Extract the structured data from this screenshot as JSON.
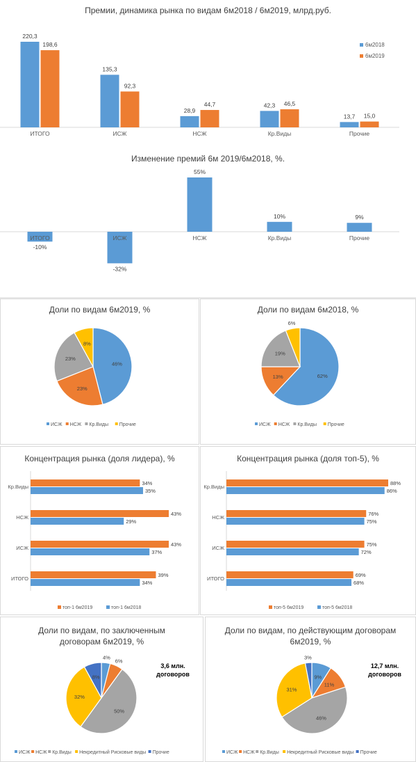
{
  "colors": {
    "blue": "#5b9bd5",
    "orange": "#ed7d31",
    "gray": "#a5a5a5",
    "yellow": "#ffc000",
    "navy": "#4472c4"
  },
  "chart_data": [
    {
      "id": "premiums",
      "type": "bar",
      "title": "Премии, динамика рынка по видам 6м2018 / 6м2019, млрд.руб.",
      "categories": [
        "ИТОГО",
        "ИСЖ",
        "НСЖ",
        "Кр.Виды",
        "Прочие"
      ],
      "series": [
        {
          "name": "6м2018",
          "color": "#5b9bd5",
          "values": [
            220.3,
            135.3,
            28.9,
            42.3,
            13.7
          ],
          "labels": [
            "220,3",
            "135,3",
            "28,9",
            "42,3",
            "13,7"
          ]
        },
        {
          "name": "6м2019",
          "color": "#ed7d31",
          "values": [
            198.6,
            92.3,
            44.7,
            46.5,
            15.0
          ],
          "labels": [
            "198,6",
            "92,3",
            "44,7",
            "46,5",
            "15,0"
          ]
        }
      ],
      "ylim": [
        0,
        220.3
      ],
      "legend": "right"
    },
    {
      "id": "change",
      "type": "bar",
      "title": "Изменение премий 6м 2019/6м2018, %.",
      "categories": [
        "ИТОГО",
        "ИСЖ",
        "НСЖ",
        "Кр.Виды",
        "Прочие"
      ],
      "values": [
        -10,
        -32,
        55,
        10,
        9
      ],
      "labels": [
        "-10%",
        "-32%",
        "55%",
        "10%",
        "9%"
      ],
      "color": "#5b9bd5",
      "ylim": [
        -32,
        55
      ]
    },
    {
      "id": "pie2019",
      "type": "pie",
      "title": "Доли по видам 6м2019, %",
      "labels": [
        "ИСЖ",
        "НСЖ",
        "Кр.Виды",
        "Прочие"
      ],
      "values": [
        46,
        23,
        23,
        8
      ],
      "value_labels": [
        "46%",
        "23%",
        "23%",
        "8%"
      ],
      "colors": [
        "#5b9bd5",
        "#ed7d31",
        "#a5a5a5",
        "#ffc000"
      ],
      "legend": "bottom"
    },
    {
      "id": "pie2018",
      "type": "pie",
      "title": "Доли по видам 6м2018, %",
      "labels": [
        "ИСЖ",
        "НСЖ",
        "Кр.Виды",
        "Прочие"
      ],
      "values": [
        62,
        13,
        19,
        6
      ],
      "value_labels": [
        "62%",
        "13%",
        "19%",
        "6%"
      ],
      "colors": [
        "#5b9bd5",
        "#ed7d31",
        "#a5a5a5",
        "#ffc000"
      ],
      "legend": "bottom"
    },
    {
      "id": "leader",
      "type": "bar",
      "orientation": "horizontal",
      "title": "Концентрация рынка (доля лидера), %",
      "categories": [
        "Кр.Виды",
        "НСЖ",
        "ИСЖ",
        "ИТОГО"
      ],
      "series": [
        {
          "name": "топ-1 6м2019",
          "color": "#ed7d31",
          "values": [
            34,
            43,
            43,
            39
          ],
          "labels": [
            "34%",
            "43%",
            "43%",
            "39%"
          ]
        },
        {
          "name": "топ-1 6м2018",
          "color": "#5b9bd5",
          "values": [
            35,
            29,
            37,
            34
          ],
          "labels": [
            "35%",
            "29%",
            "37%",
            "34%"
          ]
        }
      ],
      "xlim": [
        0,
        43
      ],
      "legend": "bottom"
    },
    {
      "id": "top5",
      "type": "bar",
      "orientation": "horizontal",
      "title": "Концентрация рынка (доля топ-5), %",
      "categories": [
        "Кр.Виды",
        "НСЖ",
        "ИСЖ",
        "ИТОГО"
      ],
      "series": [
        {
          "name": "топ-5 6м2019",
          "color": "#ed7d31",
          "values": [
            88,
            76,
            75,
            69
          ],
          "labels": [
            "88%",
            "76%",
            "75%",
            "69%"
          ]
        },
        {
          "name": "топ-5 6м2018",
          "color": "#5b9bd5",
          "values": [
            86,
            75,
            72,
            68
          ],
          "labels": [
            "86%",
            "75%",
            "72%",
            "68%"
          ]
        }
      ],
      "xlim": [
        0,
        88
      ],
      "legend": "bottom"
    },
    {
      "id": "pieNew",
      "type": "pie",
      "title": "Доли по видам, по заключенным договорам 6м2019, %",
      "title_lines": [
        "Доли по видам, по заключенным",
        "договорам 6м2019, %"
      ],
      "labels": [
        "ИСЖ",
        "НСЖ",
        "Кр.Виды",
        "Некредитный Рисковые виды",
        "Прочие"
      ],
      "values": [
        4,
        6,
        50,
        32,
        8
      ],
      "value_labels": [
        "4%",
        "6%",
        "50%",
        "32%",
        "8%"
      ],
      "colors": [
        "#5b9bd5",
        "#ed7d31",
        "#a5a5a5",
        "#ffc000",
        "#4472c4"
      ],
      "callout_lines": [
        "3,6 млн.",
        "договоров"
      ],
      "legend": "bottom"
    },
    {
      "id": "pieActive",
      "type": "pie",
      "title": "Доли по видам, по действующим договорам 6м2019, %",
      "title_lines": [
        "Доли по видам, по действующим договорам",
        "6м2019, %"
      ],
      "labels": [
        "ИСЖ",
        "НСЖ",
        "Кр.Виды",
        "Некредитный Рисковые виды",
        "Прочие"
      ],
      "values": [
        9,
        11,
        46,
        31,
        3
      ],
      "value_labels": [
        "9%",
        "11%",
        "46%",
        "31%",
        "3%"
      ],
      "colors": [
        "#5b9bd5",
        "#ed7d31",
        "#a5a5a5",
        "#ffc000",
        "#4472c4"
      ],
      "callout_lines": [
        "12,7 млн.",
        "договоров"
      ],
      "legend": "bottom"
    }
  ]
}
